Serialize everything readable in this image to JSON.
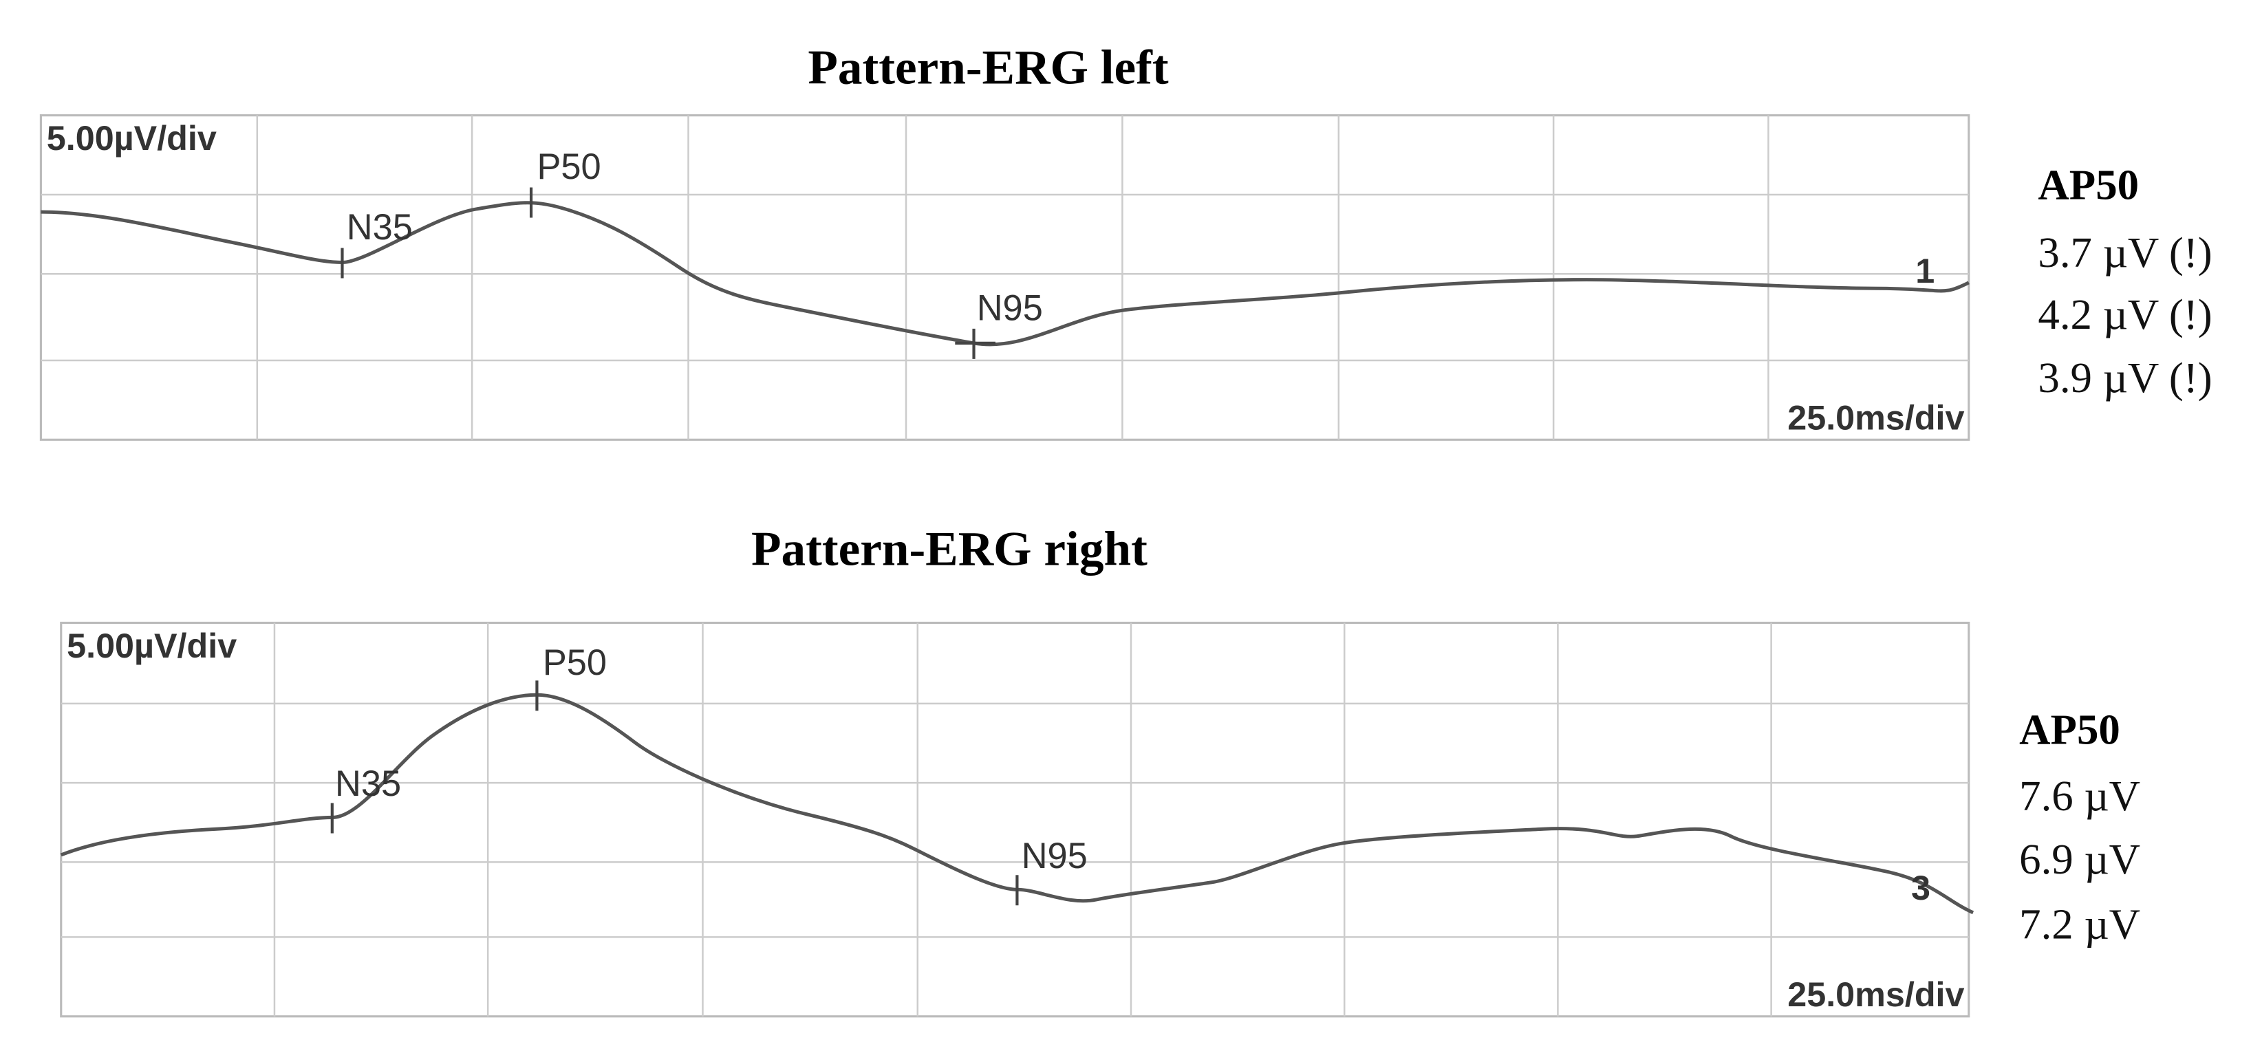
{
  "panels": [
    {
      "title": "Pattern-ERG left",
      "amplitude_scale": "5.00µV/div",
      "time_scale": "25.0ms/div",
      "trace_label": "1",
      "peaks": [
        "N35",
        "P50",
        "N95"
      ],
      "measure": {
        "title": "AP50",
        "values": [
          "3.7 µV (!)",
          "4.2 µV (!)",
          "3.9 µV (!)"
        ]
      }
    },
    {
      "title": "Pattern-ERG right",
      "amplitude_scale": "5.00µV/div",
      "time_scale": "25.0ms/div",
      "trace_label": "3",
      "peaks": [
        "N35",
        "P50",
        "N95"
      ],
      "measure": {
        "title": "AP50",
        "values": [
          "7.6 µV",
          "6.9 µV",
          "7.2 µV"
        ]
      }
    }
  ]
}
